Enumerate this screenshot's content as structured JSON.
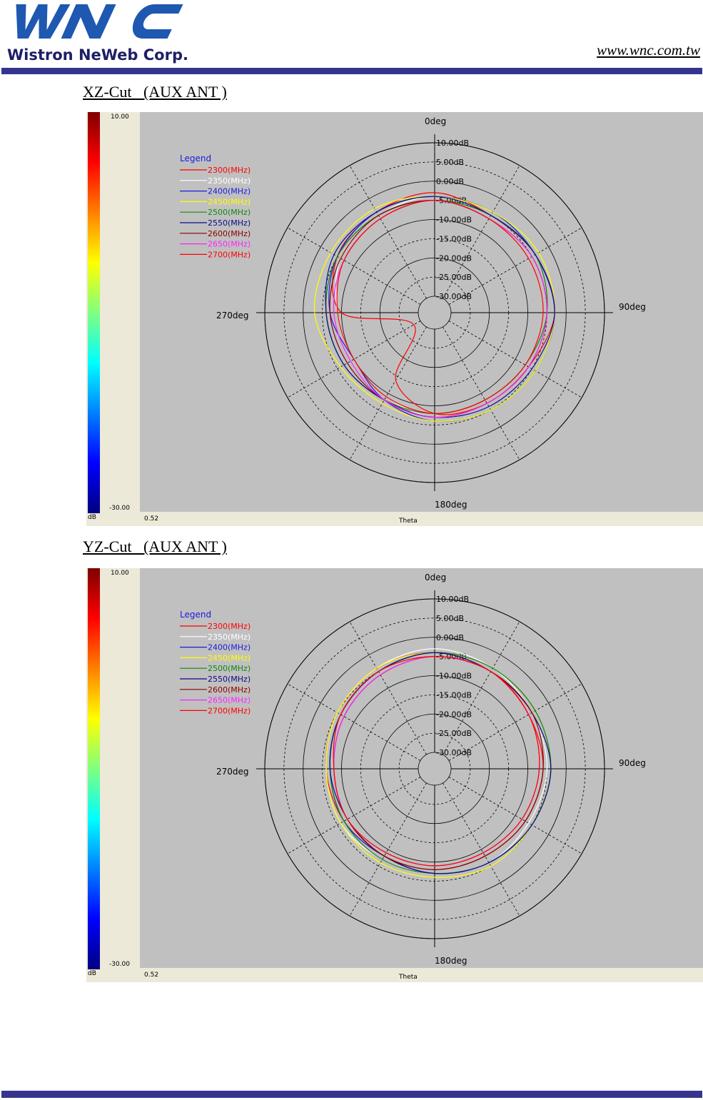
{
  "header": {
    "logo_text": "WNC",
    "logo_subtitle": "Wistron NeWeb Corp.",
    "website": "www.wnc.com.tw"
  },
  "colorbar": {
    "max_label": "10.00",
    "min_label": "-30.00",
    "unit_label": "dB",
    "colors": [
      "#800000",
      "#ff0000",
      "#ff8000",
      "#ffff00",
      "#80ff80",
      "#00ffff",
      "#0080ff",
      "#0000ff",
      "#000080"
    ]
  },
  "footer_labels": {
    "left_value": "0.52",
    "axis_label": "Theta"
  },
  "polar": {
    "angle_labels": {
      "top": "0deg",
      "right": "90deg",
      "bottom": "180deg",
      "left": "270deg"
    },
    "ring_labels": [
      "10.00dB",
      "5.00dB",
      "0.00dB",
      "-5.00dB",
      "-10.00dB",
      "-15.00dB",
      "-20.00dB",
      "-25.00dB",
      "-30.00dB"
    ],
    "legend_title": "Legend"
  },
  "series": [
    {
      "name": "2300(MHz)",
      "color": "#ff0000"
    },
    {
      "name": "2350(MHz)",
      "color": "#ffffff"
    },
    {
      "name": "2400(MHz)",
      "color": "#1a1ae0"
    },
    {
      "name": "2450(MHz)",
      "color": "#ffff00"
    },
    {
      "name": "2500(MHz)",
      "color": "#118811"
    },
    {
      "name": "2550(MHz)",
      "color": "#0a0a8a"
    },
    {
      "name": "2600(MHz)",
      "color": "#8b0000"
    },
    {
      "name": "2650(MHz)",
      "color": "#ff22ff"
    },
    {
      "name": "2700(MHz)",
      "color": "#ff0000"
    }
  ],
  "charts": [
    {
      "caption": "XZ-Cut   (AUX ANT )",
      "chart_data": {
        "type": "polar",
        "theta_deg": [
          0,
          30,
          60,
          90,
          120,
          150,
          180,
          210,
          240,
          270,
          300,
          330
        ],
        "r_range_db": [
          -30,
          10
        ],
        "series": [
          {
            "name": "2300(MHz)",
            "gain_db": [
              -3,
              -5,
              -4,
              -3,
              -6,
              -7,
              -8,
              -14,
              -28,
              -10,
              -5,
              -4
            ]
          },
          {
            "name": "2350(MHz)",
            "gain_db": [
              -4,
              -5,
              -4,
              -3,
              -5,
              -6,
              -7,
              -9,
              -10,
              -9,
              -6,
              -5
            ]
          },
          {
            "name": "2400(MHz)",
            "gain_db": [
              -4,
              -4,
              -4,
              -3,
              -4,
              -5,
              -6,
              -8,
              -10,
              -7,
              -5,
              -4
            ]
          },
          {
            "name": "2450(MHz)",
            "gain_db": [
              -4,
              -4,
              -3,
              -3,
              -4,
              -5,
              -6,
              -7,
              -6,
              -3,
              -3,
              -3
            ]
          },
          {
            "name": "2500(MHz)",
            "gain_db": [
              -5,
              -5,
              -4,
              -5,
              -7,
              -8,
              -8,
              -8,
              -7,
              -6,
              -5,
              -5
            ]
          },
          {
            "name": "2550(MHz)",
            "gain_db": [
              -4,
              -5,
              -4,
              -3,
              -5,
              -6,
              -7,
              -8,
              -7,
              -6,
              -4,
              -4
            ]
          },
          {
            "name": "2600(MHz)",
            "gain_db": [
              -5,
              -6,
              -5,
              -5,
              -6,
              -7,
              -7,
              -8,
              -8,
              -7,
              -6,
              -5
            ]
          },
          {
            "name": "2650(MHz)",
            "gain_db": [
              -5,
              -6,
              -5,
              -5,
              -6,
              -7,
              -7,
              -8,
              -9,
              -8,
              -7,
              -6
            ]
          },
          {
            "name": "2700(MHz)",
            "gain_db": [
              -5,
              -6,
              -6,
              -6,
              -7,
              -8,
              -8,
              -9,
              -10,
              -9,
              -7,
              -6
            ]
          }
        ]
      }
    },
    {
      "caption": "YZ-Cut   (AUX ANT )",
      "chart_data": {
        "type": "polar",
        "theta_deg": [
          0,
          30,
          60,
          90,
          120,
          150,
          180,
          210,
          240,
          270,
          300,
          330
        ],
        "r_range_db": [
          -30,
          10
        ],
        "series": [
          {
            "name": "2300(MHz)",
            "gain_db": [
              -4,
              -5,
              -6,
              -6,
              -7,
              -8,
              -8,
              -8,
              -7,
              -6,
              -5,
              -4
            ]
          },
          {
            "name": "2350(MHz)",
            "gain_db": [
              -3,
              -4,
              -5,
              -5,
              -6,
              -6,
              -7,
              -7,
              -6,
              -6,
              -5,
              -4
            ]
          },
          {
            "name": "2400(MHz)",
            "gain_db": [
              -4,
              -4,
              -4,
              -4,
              -5,
              -6,
              -7,
              -8,
              -7,
              -7,
              -6,
              -5
            ]
          },
          {
            "name": "2450(MHz)",
            "gain_db": [
              -4,
              -4,
              -4,
              -4,
              -5,
              -5,
              -6,
              -6,
              -6,
              -6,
              -5,
              -4
            ]
          },
          {
            "name": "2500(MHz)",
            "gain_db": [
              -4,
              -4,
              -4,
              -4,
              -5,
              -6,
              -7,
              -7,
              -7,
              -7,
              -6,
              -5
            ]
          },
          {
            "name": "2550(MHz)",
            "gain_db": [
              -4,
              -5,
              -5,
              -4,
              -5,
              -6,
              -7,
              -8,
              -8,
              -7,
              -6,
              -5
            ]
          },
          {
            "name": "2600(MHz)",
            "gain_db": [
              -5,
              -5,
              -5,
              -6,
              -7,
              -8,
              -8,
              -8,
              -8,
              -8,
              -7,
              -6
            ]
          },
          {
            "name": "2650(MHz)",
            "gain_db": [
              -5,
              -5,
              -6,
              -7,
              -8,
              -9,
              -9,
              -9,
              -8,
              -8,
              -7,
              -6
            ]
          },
          {
            "name": "2700(MHz)",
            "gain_db": [
              -5,
              -5,
              -6,
              -7,
              -8,
              -9,
              -9,
              -9,
              -8,
              -8,
              -6,
              -5
            ]
          }
        ]
      }
    }
  ]
}
